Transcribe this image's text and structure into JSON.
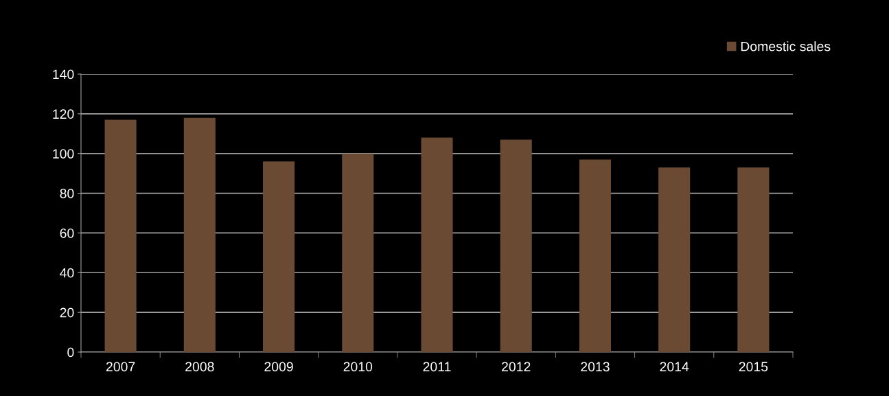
{
  "chart_data": {
    "type": "bar",
    "categories": [
      "2007",
      "2008",
      "2009",
      "2010",
      "2011",
      "2012",
      "2013",
      "2014",
      "2015"
    ],
    "series": [
      {
        "name": "Domestic sales",
        "color": "#6b4a33",
        "values": [
          117,
          118,
          96,
          100,
          108,
          107,
          97,
          93,
          93
        ]
      }
    ],
    "ylim": [
      0,
      140
    ],
    "yticks": [
      0,
      20,
      40,
      60,
      80,
      100,
      120,
      140
    ],
    "grid": "y",
    "legend": "top right"
  }
}
